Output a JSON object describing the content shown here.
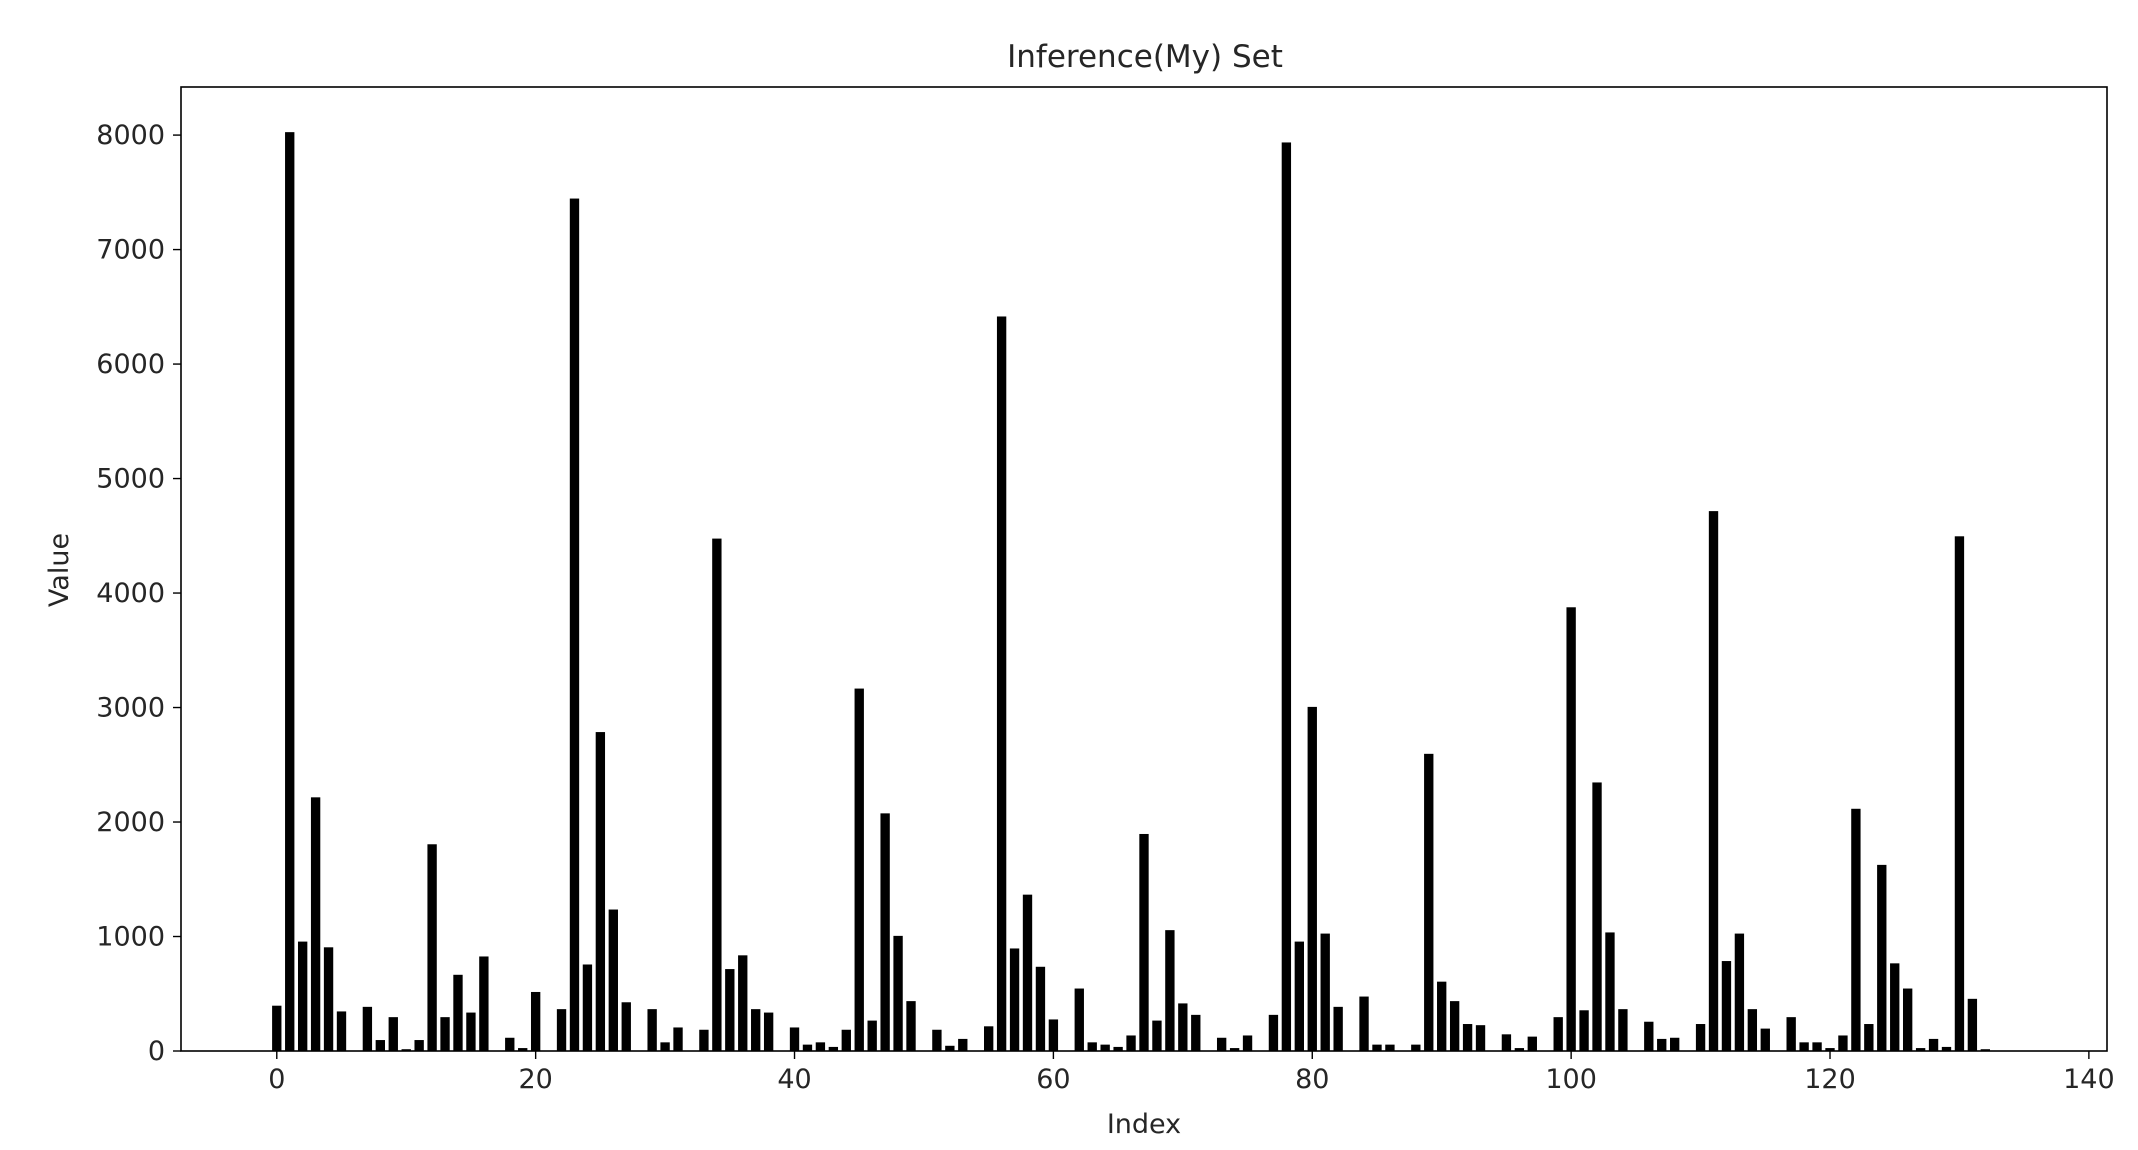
{
  "chart_data": {
    "type": "bar",
    "title": "Inference(My) Set",
    "xlabel": "Index",
    "ylabel": "Value",
    "xlim": [
      -7.4,
      141.4
    ],
    "ylim": [
      0,
      8420
    ],
    "xticks": [
      0,
      20,
      40,
      60,
      80,
      100,
      120,
      140
    ],
    "yticks": [
      0,
      1000,
      2000,
      3000,
      4000,
      5000,
      6000,
      7000,
      8000
    ],
    "grid": false,
    "legend": "none",
    "bar_color": "#000000",
    "bar_edge_color": "#ffffff",
    "x": [
      0,
      1,
      2,
      3,
      4,
      5,
      6,
      7,
      8,
      9,
      10,
      11,
      12,
      13,
      14,
      15,
      16,
      17,
      18,
      19,
      20,
      21,
      22,
      23,
      24,
      25,
      26,
      27,
      28,
      29,
      30,
      31,
      32,
      33,
      34,
      35,
      36,
      37,
      38,
      39,
      40,
      41,
      42,
      43,
      44,
      45,
      46,
      47,
      48,
      49,
      50,
      51,
      52,
      53,
      54,
      55,
      56,
      57,
      58,
      59,
      60,
      61,
      62,
      63,
      64,
      65,
      66,
      67,
      68,
      69,
      70,
      71,
      72,
      73,
      74,
      75,
      76,
      77,
      78,
      79,
      80,
      81,
      82,
      83,
      84,
      85,
      86,
      87,
      88,
      89,
      90,
      91,
      92,
      93,
      94,
      95,
      96,
      97,
      98,
      99,
      100,
      101,
      102,
      103,
      104,
      105,
      106,
      107,
      108,
      109,
      110,
      111,
      112,
      113,
      114,
      115,
      116,
      117,
      118,
      119,
      120,
      121,
      122,
      123,
      124,
      125,
      126,
      127,
      128,
      129,
      130,
      131,
      132
    ],
    "values": [
      400,
      8030,
      960,
      2220,
      910,
      350,
      0,
      390,
      100,
      300,
      20,
      100,
      1810,
      300,
      670,
      340,
      830,
      0,
      120,
      30,
      520,
      0,
      370,
      7450,
      760,
      2790,
      1240,
      430,
      0,
      370,
      80,
      210,
      0,
      190,
      4480,
      720,
      840,
      370,
      340,
      0,
      210,
      60,
      80,
      40,
      190,
      3170,
      270,
      2080,
      1010,
      440,
      0,
      190,
      50,
      110,
      0,
      220,
      6420,
      900,
      1370,
      740,
      280,
      0,
      550,
      80,
      60,
      40,
      140,
      1900,
      270,
      1060,
      420,
      320,
      0,
      120,
      30,
      140,
      0,
      320,
      7940,
      960,
      3010,
      1030,
      390,
      0,
      480,
      60,
      60,
      0,
      60,
      2600,
      610,
      440,
      240,
      230,
      0,
      150,
      30,
      130,
      0,
      300,
      3880,
      360,
      2350,
      1040,
      370,
      0,
      260,
      110,
      120,
      0,
      240,
      4720,
      790,
      1030,
      370,
      200,
      0,
      300,
      80,
      80,
      30,
      140,
      2120,
      240,
      1630,
      770,
      550,
      30,
      110,
      40,
      4500,
      460,
      20
    ]
  }
}
